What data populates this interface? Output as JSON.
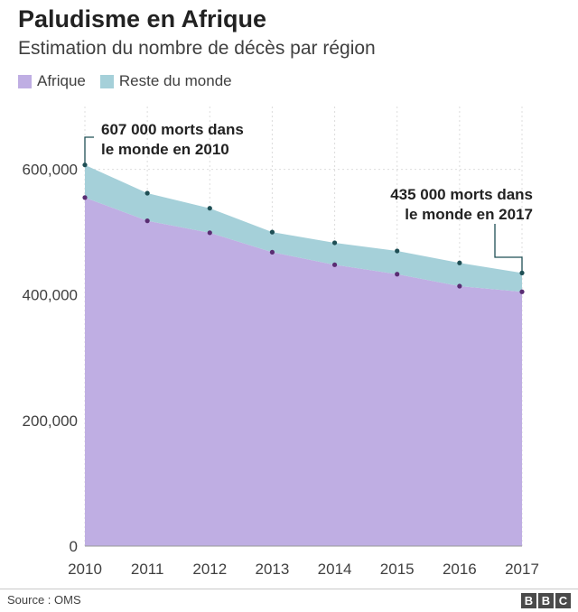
{
  "header": {
    "title": "Paludisme en Afrique",
    "subtitle": "Estimation du nombre de décès par région"
  },
  "legend": {
    "items": [
      {
        "label": "Afrique",
        "color": "#bfaee3"
      },
      {
        "label": "Reste du monde",
        "color": "#a5d0d9"
      }
    ]
  },
  "annotations": {
    "start_line1": "607 000 morts dans",
    "start_line2": "le monde en 2010",
    "end_line1": "435 000 morts dans",
    "end_line2": "le monde en 2017"
  },
  "footer": {
    "source": "Source : OMS",
    "logo_letters": [
      "B",
      "B",
      "C"
    ]
  },
  "chart_data": {
    "type": "area",
    "stacked": true,
    "x": [
      2010,
      2011,
      2012,
      2013,
      2014,
      2015,
      2016,
      2017
    ],
    "series": [
      {
        "name": "Afrique",
        "color": "#bfaee3",
        "point_color": "#5a2d73",
        "values": [
          555000,
          518000,
          499000,
          468000,
          448000,
          433000,
          414000,
          405000
        ]
      },
      {
        "name": "Reste du monde",
        "color": "#a5d0d9",
        "point_color": "#1f4f55",
        "values": [
          52000,
          44000,
          39000,
          32000,
          35000,
          37000,
          37000,
          30000
        ]
      }
    ],
    "ylim": [
      0,
      700000
    ],
    "y_ticks": [
      0,
      200000,
      400000,
      600000
    ],
    "y_tick_labels": [
      "0",
      "200,000",
      "400,000",
      "600,000"
    ],
    "x_tick_labels": [
      "2010",
      "2011",
      "2012",
      "2013",
      "2014",
      "2015",
      "2016",
      "2017"
    ],
    "grid": true,
    "legend_position": "top-left"
  }
}
